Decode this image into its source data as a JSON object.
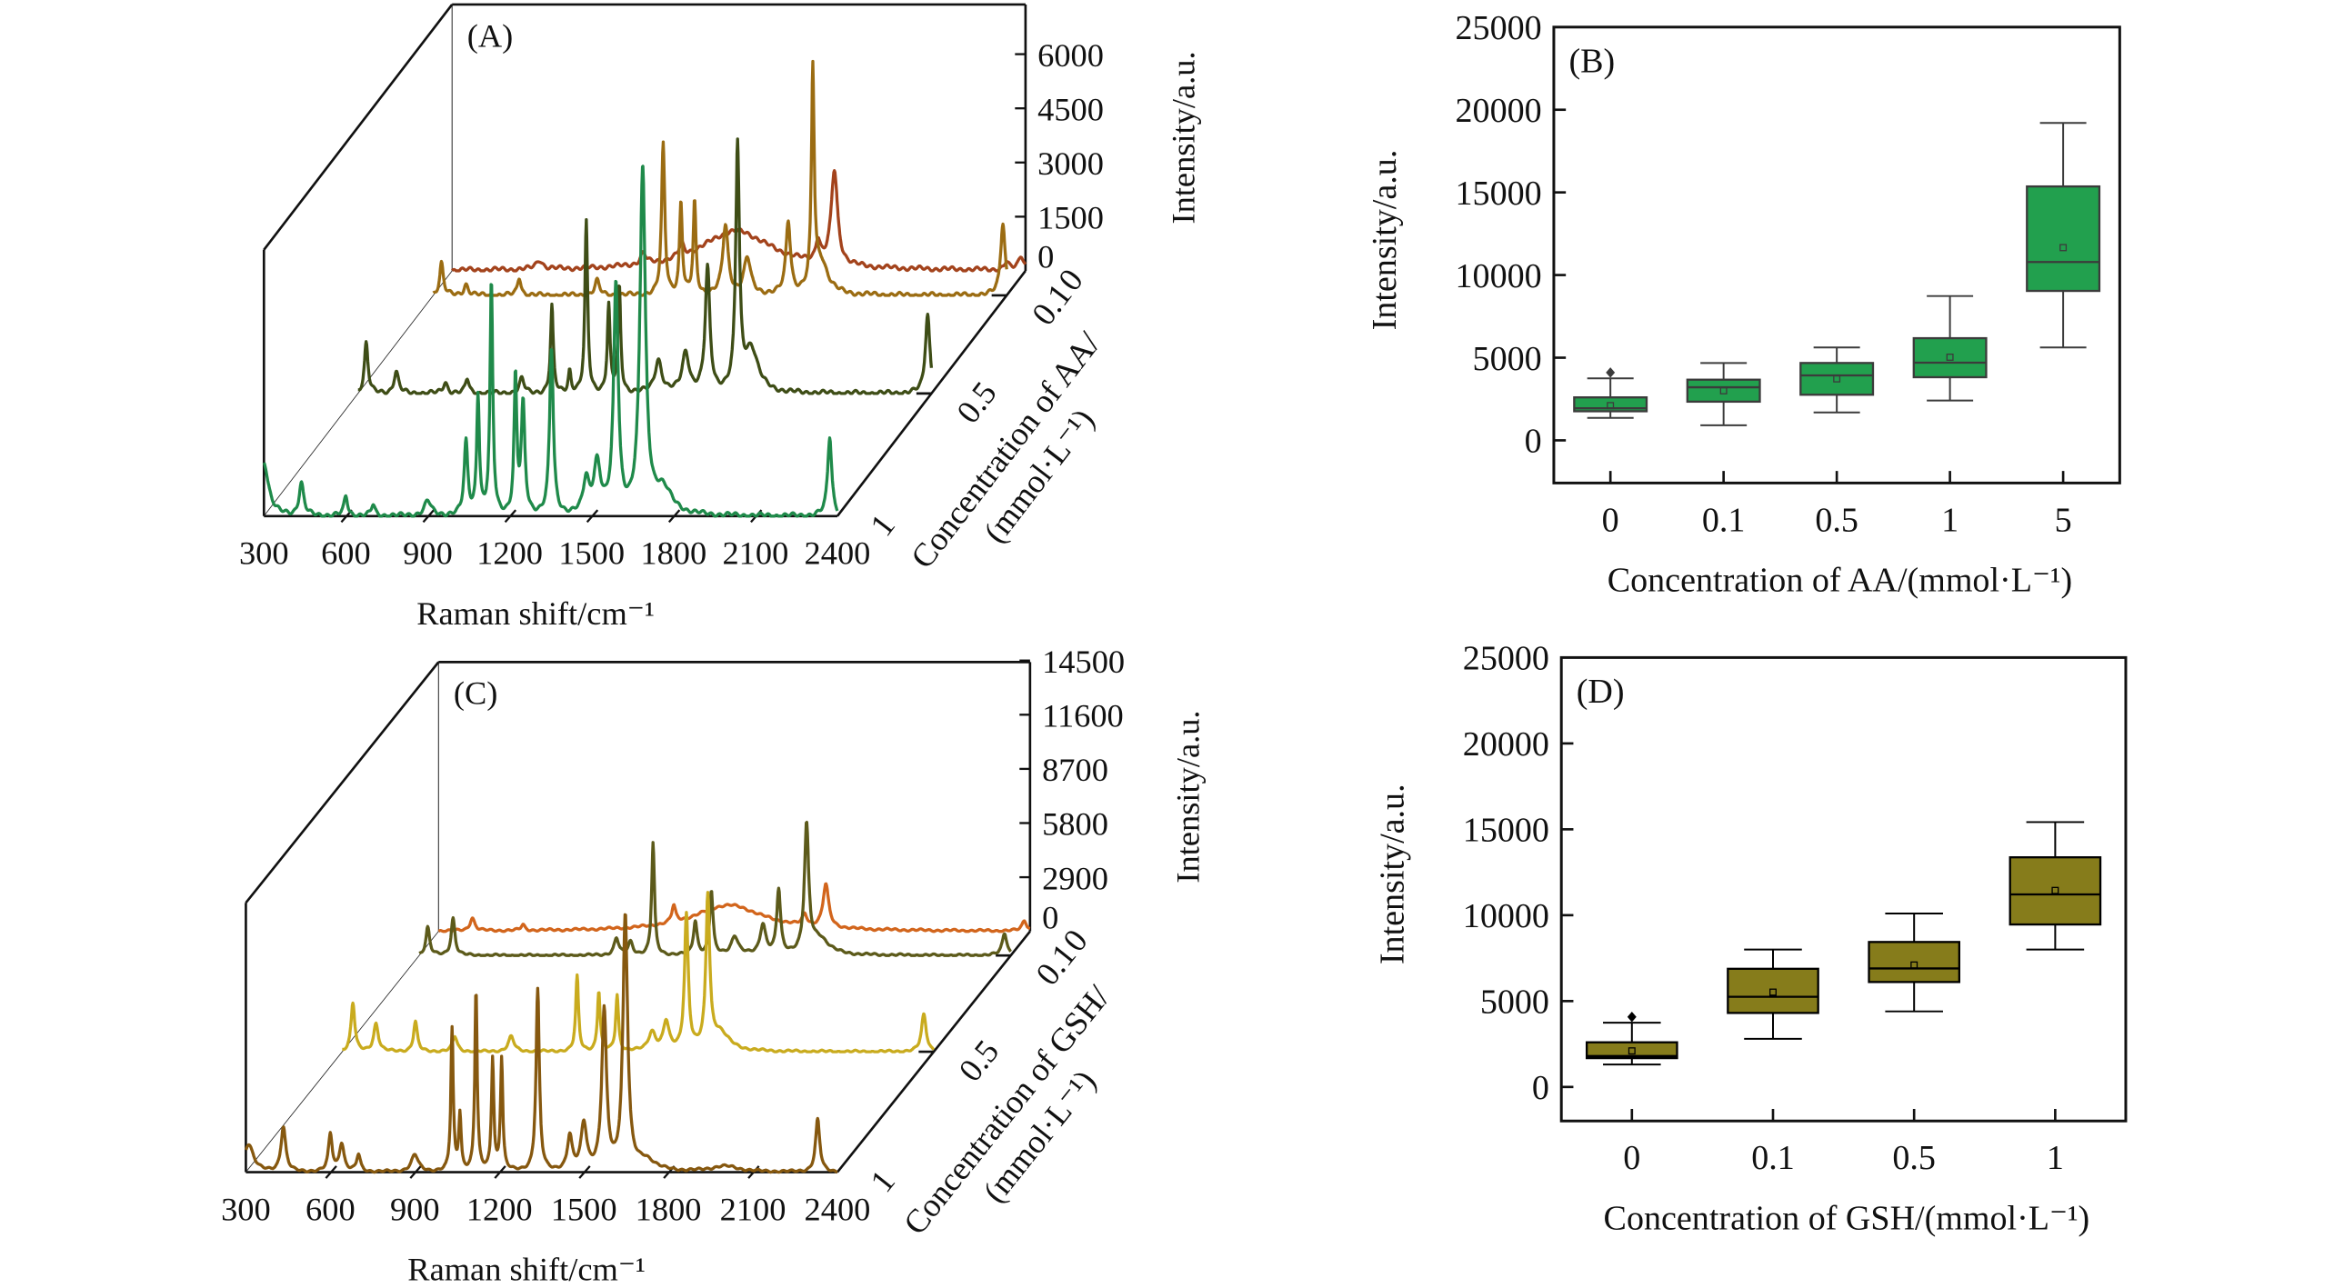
{
  "chart_data": [
    {
      "type": "line",
      "panel_label": "(A)",
      "projection": "3d-waterfall",
      "xlabel": "Raman shift/cm⁻¹",
      "ylabel": "Intensity/a.u.",
      "zlabel_line1": "Concentration of AA/",
      "zlabel_line2": "(mmol·L⁻¹)",
      "xlim": [
        300,
        2400
      ],
      "x_ticks": [
        "300",
        "600",
        "900",
        "1200",
        "1500",
        "1800",
        "2100",
        "2400"
      ],
      "y_ticks": [
        "0",
        "1500",
        "3000",
        "4500",
        "6000"
      ],
      "ylim": [
        0,
        7000
      ],
      "z_ticks": [
        "0",
        "0.1",
        "0.5",
        "1"
      ],
      "series": [
        {
          "concentration": "0",
          "color": "#a3431c",
          "baseline": 0,
          "peaks": [
            [
              620,
              250,
              15
            ],
            [
              1000,
              300,
              12
            ],
            [
              1140,
              350,
              10
            ],
            [
              1340,
              1100,
              160
            ],
            [
              1700,
              2600,
              14
            ],
            [
              1640,
              600,
              10
            ],
            [
              2384,
              400,
              12
            ],
            [
              2330,
              200,
              10
            ]
          ]
        },
        {
          "concentration": "0.1",
          "color": "#9b6c12",
          "baseline": 0,
          "peaks": [
            [
              330,
              900,
              8
            ],
            [
              420,
              300,
              10
            ],
            [
              615,
              500,
              8
            ],
            [
              900,
              400,
              10
            ],
            [
              1142,
              4150,
              7
            ],
            [
              1207,
              2550,
              6
            ],
            [
              1257,
              2550,
              6
            ],
            [
              1370,
              1900,
              12
            ],
            [
              1450,
              1000,
              15
            ],
            [
              1600,
              2000,
              10
            ],
            [
              1690,
              6000,
              6
            ],
            [
              1720,
              900,
              30
            ],
            [
              2386,
              2000,
              10
            ],
            [
              2420,
              300,
              8
            ]
          ]
        },
        {
          "concentration": "0.5",
          "color": "#3e4d16",
          "baseline": 0,
          "peaks": [
            [
              330,
              1400,
              8
            ],
            [
              440,
              600,
              10
            ],
            [
              620,
              300,
              10
            ],
            [
              700,
              400,
              8
            ],
            [
              900,
              400,
              10
            ],
            [
              1010,
              2400,
              6
            ],
            [
              1075,
              600,
              6
            ],
            [
              1136,
              4700,
              6
            ],
            [
              1218,
              2400,
              6
            ],
            [
              1257,
              2900,
              6
            ],
            [
              1400,
              900,
              15
            ],
            [
              1500,
              1100,
              15
            ],
            [
              1580,
              3400,
              10
            ],
            [
              1690,
              6700,
              8
            ],
            [
              1740,
              1200,
              30
            ],
            [
              2386,
              2200,
              10
            ]
          ]
        },
        {
          "concentration": "1",
          "color": "#1f8a4a",
          "baseline": 0,
          "peaks": [
            [
              300,
              1500,
              20
            ],
            [
              437,
              900,
              10
            ],
            [
              600,
              540,
              8
            ],
            [
              700,
              300,
              8
            ],
            [
              900,
              400,
              15
            ],
            [
              1040,
              2000,
              8
            ],
            [
              1084,
              3300,
              6
            ],
            [
              1133,
              6400,
              6
            ],
            [
              1221,
              3750,
              6
            ],
            [
              1249,
              3000,
              8
            ],
            [
              1353,
              4600,
              8
            ],
            [
              1480,
              900,
              12
            ],
            [
              1520,
              1400,
              15
            ],
            [
              1589,
              6300,
              10
            ],
            [
              1687,
              9500,
              12
            ],
            [
              1760,
              700,
              40
            ],
            [
              2372,
              2200,
              9
            ]
          ]
        }
      ]
    },
    {
      "type": "box",
      "panel_label": "(B)",
      "xlabel": "Concentration of AA/(mmol·L⁻¹)",
      "ylabel": "Intensity/a.u.",
      "ylim": [
        -2580,
        25000
      ],
      "y_ticks": [
        "0",
        "5000",
        "10000",
        "15000",
        "20000",
        "25000"
      ],
      "categories": [
        "0",
        "0.1",
        "0.5",
        "1",
        "5"
      ],
      "fill": "#22a04e",
      "stroke": "#3b3b3b",
      "boxes": [
        {
          "min": 1360,
          "q1": 1760,
          "median": 1940,
          "q3": 2600,
          "max": 3750,
          "mean": 2100,
          "outliers": [
            4100
          ]
        },
        {
          "min": 910,
          "q1": 2340,
          "median": 3210,
          "q3": 3670,
          "max": 4680,
          "mean": 3000,
          "outliers": []
        },
        {
          "min": 1690,
          "q1": 2760,
          "median": 3930,
          "q3": 4680,
          "max": 5620,
          "mean": 3720,
          "outliers": []
        },
        {
          "min": 2410,
          "q1": 3820,
          "median": 4700,
          "q3": 6180,
          "max": 8730,
          "mean": 5030,
          "outliers": []
        },
        {
          "min": 5620,
          "q1": 9040,
          "median": 10790,
          "q3": 15360,
          "max": 19200,
          "mean": 11660,
          "outliers": []
        }
      ]
    },
    {
      "type": "line",
      "panel_label": "(C)",
      "projection": "3d-waterfall",
      "xlabel": "Raman shift/cm⁻¹",
      "ylabel": "Intensity/a.u.",
      "zlabel_line1": "Concentration of GSH/",
      "zlabel_line2": "(mmol·L⁻¹)",
      "xlim": [
        300,
        2400
      ],
      "x_ticks": [
        "300",
        "600",
        "900",
        "1200",
        "1500",
        "1800",
        "2100",
        "2400"
      ],
      "y_ticks": [
        "0",
        "2900",
        "5800",
        "8700",
        "11600",
        "14500"
      ],
      "ylim": [
        0,
        14500
      ],
      "z_ticks": [
        "0",
        "0.1",
        "0.5",
        "1"
      ],
      "series": [
        {
          "concentration": "0",
          "color": "#d2651c",
          "baseline": 0,
          "peaks": [
            [
              420,
              700,
              10
            ],
            [
              600,
              300,
              8
            ],
            [
              1135,
              900,
              8
            ],
            [
              1330,
              1400,
              150
            ],
            [
              1675,
              2300,
              12
            ],
            [
              1600,
              600,
              10
            ],
            [
              2380,
              560,
              10
            ]
          ]
        },
        {
          "concentration": "0.1",
          "color": "#5c5a1a",
          "baseline": 0,
          "peaks": [
            [
              330,
              1500,
              8
            ],
            [
              420,
              2000,
              8
            ],
            [
              1000,
              900,
              10
            ],
            [
              1050,
              700,
              10
            ],
            [
              1130,
              6000,
              6
            ],
            [
              1280,
              1800,
              8
            ],
            [
              1337,
              3400,
              7
            ],
            [
              1420,
              1000,
              15
            ],
            [
              1576,
              3400,
              8
            ],
            [
              1520,
              1600,
              12
            ],
            [
              1675,
              6700,
              9
            ],
            [
              1720,
              900,
              40
            ],
            [
              2378,
              1200,
              10
            ]
          ]
        },
        {
          "concentration": "0.5",
          "color": "#c9ab1e",
          "baseline": 0,
          "peaks": [
            [
              338,
              2600,
              8
            ],
            [
              420,
              1500,
              10
            ],
            [
              560,
              1600,
              8
            ],
            [
              700,
              800,
              10
            ],
            [
              900,
              800,
              12
            ],
            [
              1134,
              4000,
              6
            ],
            [
              1211,
              3200,
              6
            ],
            [
              1276,
              3000,
              6
            ],
            [
              1400,
              1000,
              15
            ],
            [
              1450,
              1500,
              12
            ],
            [
              1522,
              7200,
              8
            ],
            [
              1598,
              8000,
              8
            ],
            [
              1640,
              1000,
              40
            ],
            [
              2365,
              2000,
              10
            ]
          ]
        },
        {
          "concentration": "1",
          "color": "#86580f",
          "baseline": 0,
          "peaks": [
            [
              310,
              1500,
              20
            ],
            [
              433,
              2400,
              10
            ],
            [
              600,
              2000,
              8
            ],
            [
              640,
              1500,
              10
            ],
            [
              700,
              900,
              8
            ],
            [
              900,
              900,
              15
            ],
            [
              1032,
              7600,
              5
            ],
            [
              1060,
              3000,
              5
            ],
            [
              1117,
              9700,
              5
            ],
            [
              1176,
              6000,
              5
            ],
            [
              1208,
              6000,
              5
            ],
            [
              1336,
              9700,
              7
            ],
            [
              1450,
              1800,
              10
            ],
            [
              1500,
              2500,
              12
            ],
            [
              1572,
              8500,
              10
            ],
            [
              1647,
              13600,
              10
            ],
            [
              1720,
              600,
              40
            ],
            [
              2000,
              300,
              60
            ],
            [
              2330,
              2800,
              9
            ]
          ]
        }
      ]
    },
    {
      "type": "box",
      "panel_label": "(D)",
      "xlabel": "Concentration of GSH/(mmol·L⁻¹)",
      "ylabel": "Intensity/a.u.",
      "ylim": [
        -1980,
        25000
      ],
      "y_ticks": [
        "0",
        "5000",
        "10000",
        "15000",
        "20000",
        "25000"
      ],
      "categories": [
        "0",
        "0.1",
        "0.5",
        "1"
      ],
      "fill": "#867c1b",
      "stroke": "#000000",
      "boxes": [
        {
          "min": 1310,
          "q1": 1680,
          "median": 1800,
          "q3": 2600,
          "max": 3740,
          "mean": 2100,
          "outliers": [
            4080
          ]
        },
        {
          "min": 2800,
          "q1": 4310,
          "median": 5250,
          "q3": 6880,
          "max": 8000,
          "mean": 5520,
          "outliers": []
        },
        {
          "min": 4400,
          "q1": 6110,
          "median": 6900,
          "q3": 8440,
          "max": 10100,
          "mean": 7100,
          "outliers": []
        },
        {
          "min": 8000,
          "q1": 9460,
          "median": 11210,
          "q3": 13370,
          "max": 15420,
          "mean": 11440,
          "outliers": []
        }
      ]
    }
  ]
}
